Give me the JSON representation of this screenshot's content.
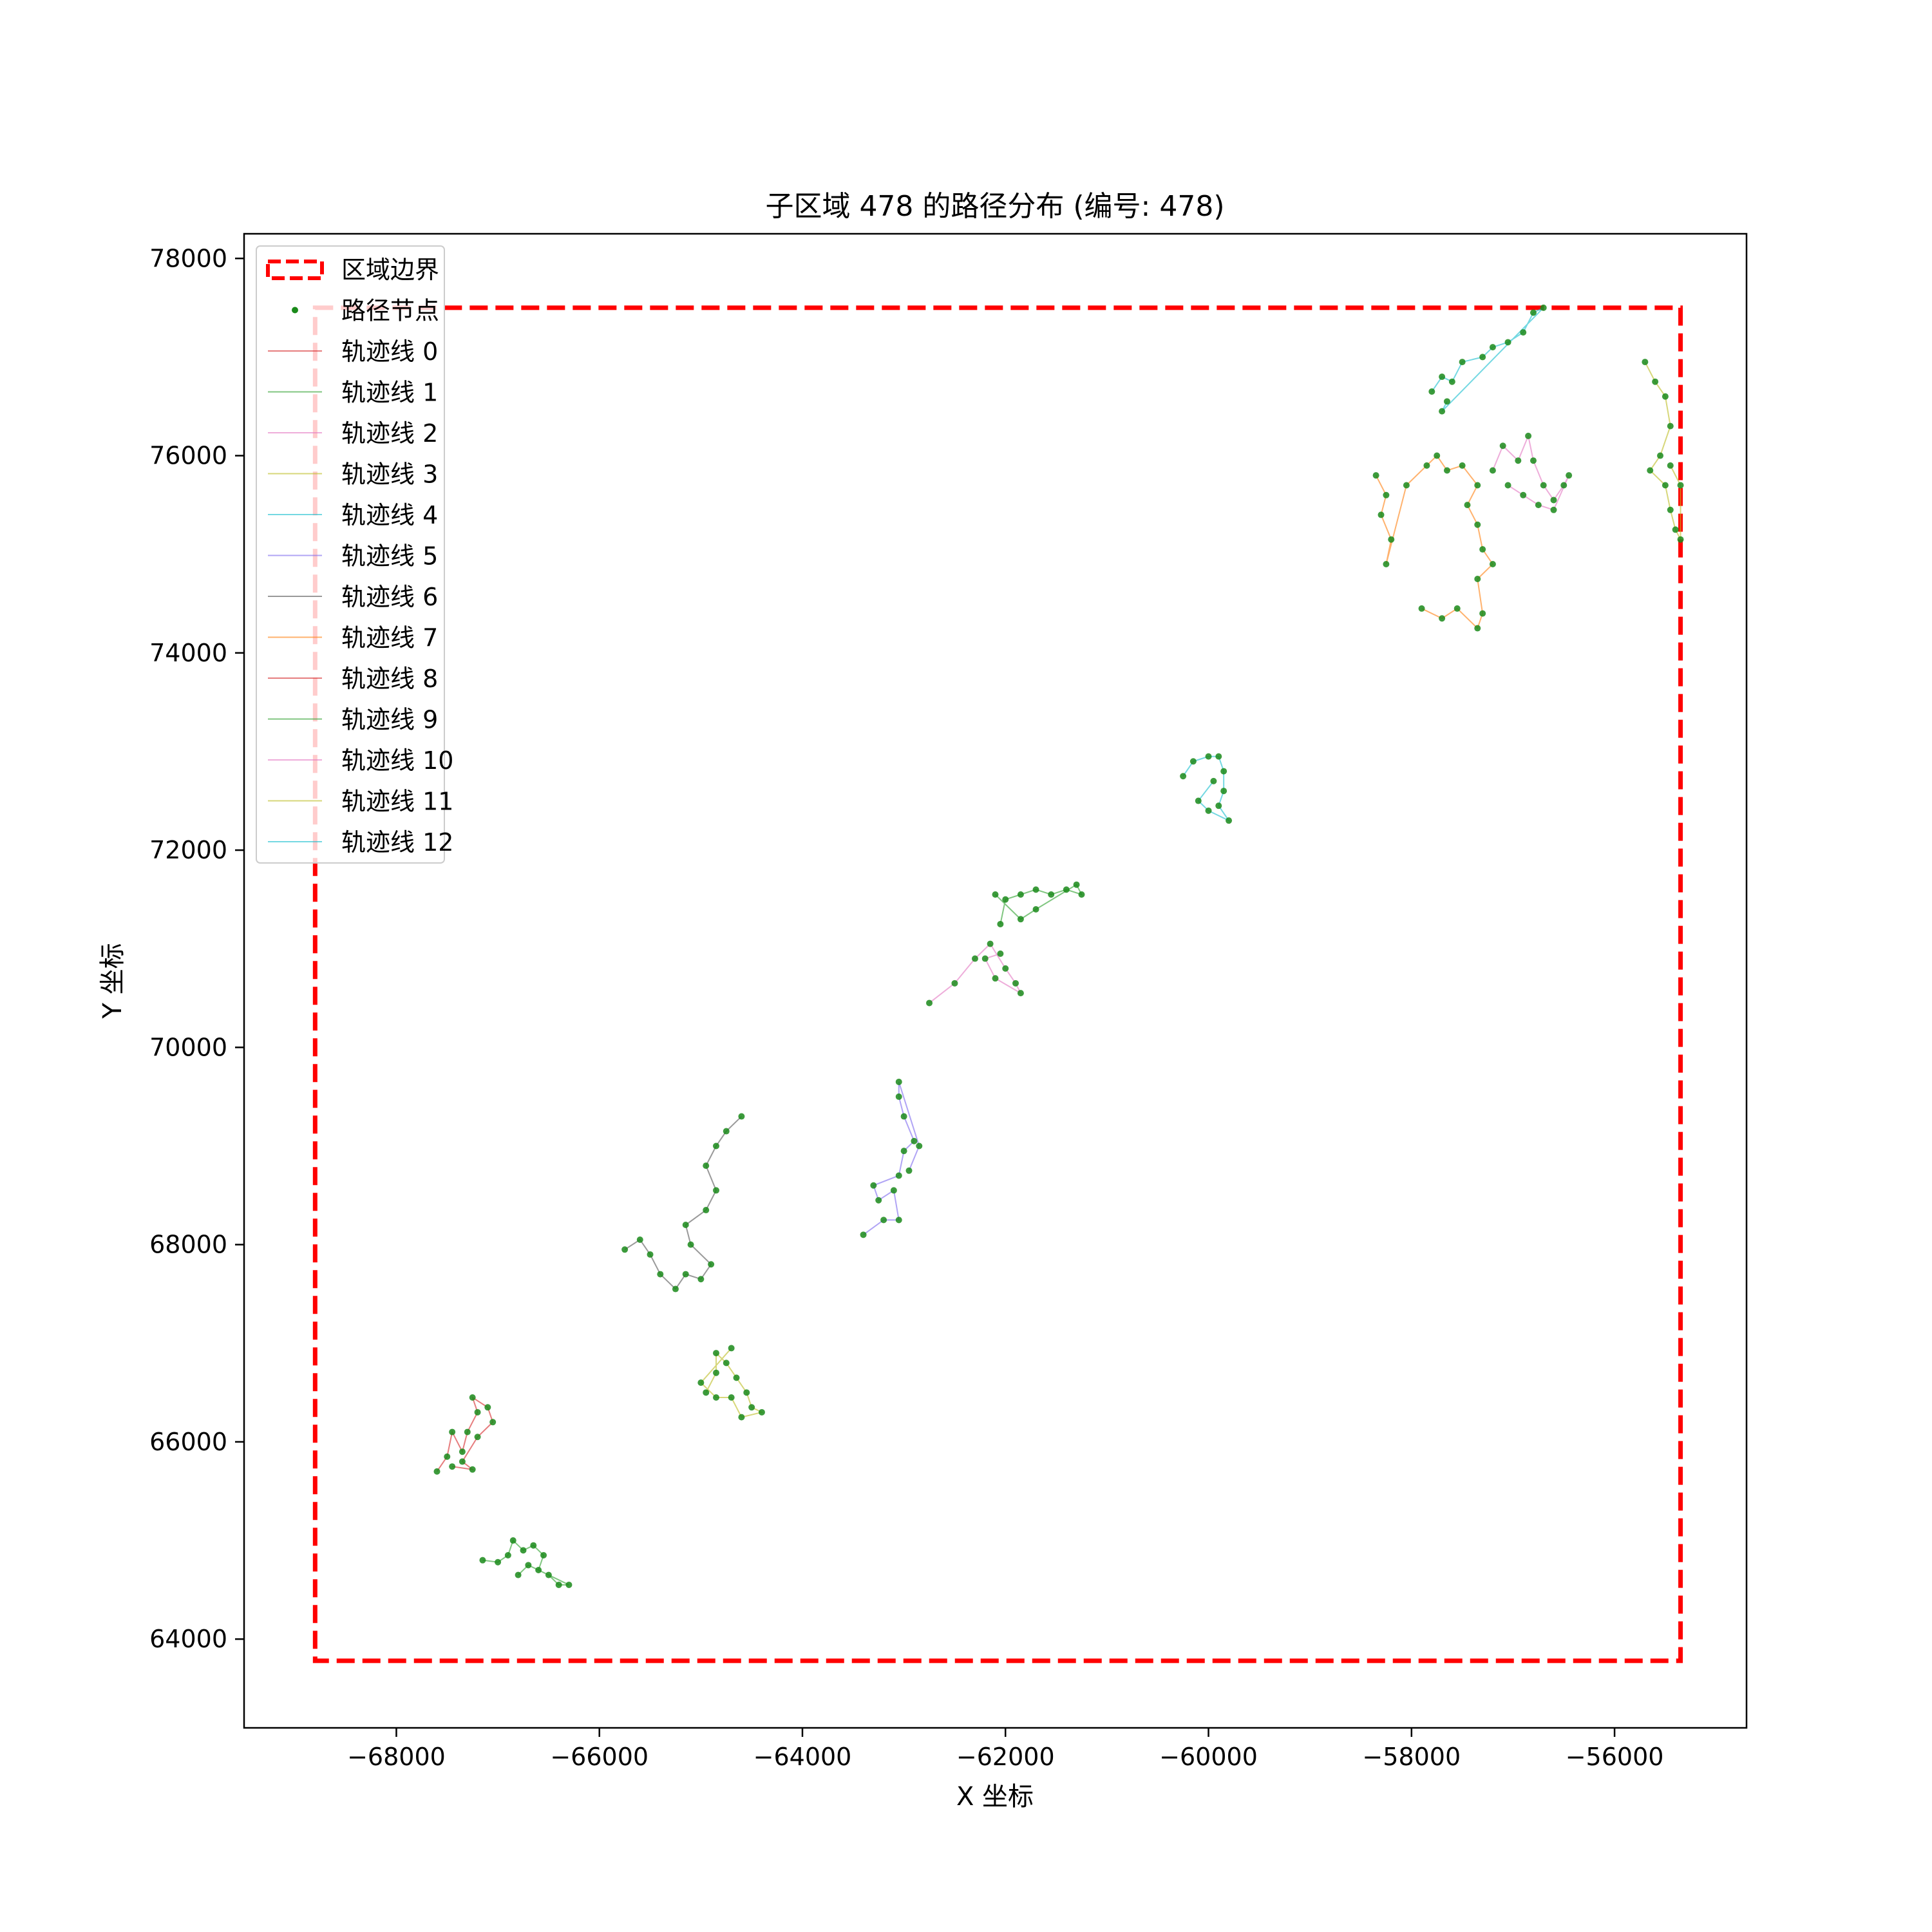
{
  "chart_data": {
    "type": "scatter",
    "title": "子区域 478 的路径分布 (编号: 478)",
    "xlabel": "X 坐标",
    "ylabel": "Y 坐标",
    "xlim": [
      -69500,
      -54700
    ],
    "ylim": [
      63100,
      78250
    ],
    "xticks": [
      -68000,
      -66000,
      -64000,
      -62000,
      -60000,
      -58000,
      -56000
    ],
    "yticks": [
      64000,
      66000,
      68000,
      70000,
      72000,
      74000,
      76000,
      78000
    ],
    "xtick_labels": [
      "−68000",
      "−66000",
      "−64000",
      "−62000",
      "−60000",
      "−58000",
      "−56000"
    ],
    "ytick_labels": [
      "64000",
      "66000",
      "68000",
      "70000",
      "72000",
      "74000",
      "76000",
      "78000"
    ],
    "grid": false,
    "legend_position": "top-left",
    "boundary": {
      "label": "区域边界",
      "color": "#ff0000",
      "x_range": [
        -68800,
        -55350
      ],
      "y_range": [
        63780,
        77500
      ]
    },
    "points_label": "路径节点",
    "point_color": "#1a8a1a",
    "series": [
      {
        "name": "轨迹线 0",
        "color": "#d62728"
      },
      {
        "name": "轨迹线 1",
        "color": "#2ca02c"
      },
      {
        "name": "轨迹线 2",
        "color": "#e377c2"
      },
      {
        "name": "轨迹线 3",
        "color": "#bcbd22"
      },
      {
        "name": "轨迹线 4",
        "color": "#17becf"
      },
      {
        "name": "轨迹线 5",
        "color": "#7b68ee"
      },
      {
        "name": "轨迹线 6",
        "color": "#555555"
      },
      {
        "name": "轨迹线 7",
        "color": "#ff7f0e"
      },
      {
        "name": "轨迹线 8",
        "color": "#d62728"
      },
      {
        "name": "轨迹线 9",
        "color": "#2ca02c"
      },
      {
        "name": "轨迹线 10",
        "color": "#e377c2"
      },
      {
        "name": "轨迹线 11",
        "color": "#bcbd22"
      },
      {
        "name": "轨迹线 12",
        "color": "#17becf"
      }
    ],
    "clusters": [
      {
        "series": 0,
        "path": [
          [
            -67600,
            65700
          ],
          [
            -67500,
            65850
          ],
          [
            -67450,
            66100
          ],
          [
            -67350,
            65900
          ],
          [
            -67300,
            66100
          ],
          [
            -67200,
            66300
          ],
          [
            -67250,
            66450
          ],
          [
            -67100,
            66350
          ],
          [
            -67050,
            66200
          ],
          [
            -67200,
            66050
          ],
          [
            -67350,
            65800
          ],
          [
            -67250,
            65720
          ],
          [
            -67450,
            65750
          ]
        ]
      },
      {
        "series": 1,
        "path": [
          [
            -67150,
            64800
          ],
          [
            -67000,
            64780
          ],
          [
            -66900,
            64850
          ],
          [
            -66850,
            65000
          ],
          [
            -66750,
            64900
          ],
          [
            -66650,
            64950
          ],
          [
            -66550,
            64850
          ],
          [
            -66600,
            64700
          ],
          [
            -66500,
            64650
          ],
          [
            -66400,
            64550
          ],
          [
            -66300,
            64550
          ],
          [
            -66700,
            64750
          ],
          [
            -66800,
            64650
          ]
        ]
      },
      {
        "series": 3,
        "path": [
          [
            -64950,
            66500
          ],
          [
            -64850,
            66700
          ],
          [
            -64850,
            66900
          ],
          [
            -64750,
            66800
          ],
          [
            -64650,
            66650
          ],
          [
            -64550,
            66500
          ],
          [
            -64500,
            66350
          ],
          [
            -64400,
            66300
          ],
          [
            -64600,
            66250
          ],
          [
            -64700,
            66450
          ],
          [
            -64850,
            66450
          ],
          [
            -65000,
            66600
          ],
          [
            -64700,
            66950
          ]
        ]
      },
      {
        "series": 6,
        "path": [
          [
            -65750,
            67950
          ],
          [
            -65600,
            68050
          ],
          [
            -65500,
            67900
          ],
          [
            -65400,
            67700
          ],
          [
            -65250,
            67550
          ],
          [
            -65150,
            67700
          ],
          [
            -65000,
            67650
          ],
          [
            -64900,
            67800
          ],
          [
            -65100,
            68000
          ],
          [
            -65150,
            68200
          ],
          [
            -64950,
            68350
          ],
          [
            -64850,
            68550
          ],
          [
            -64950,
            68800
          ],
          [
            -64850,
            69000
          ],
          [
            -64750,
            69150
          ],
          [
            -64600,
            69300
          ]
        ]
      },
      {
        "series": 5,
        "path": [
          [
            -63400,
            68100
          ],
          [
            -63200,
            68250
          ],
          [
            -63050,
            68250
          ],
          [
            -63100,
            68550
          ],
          [
            -63250,
            68450
          ],
          [
            -63300,
            68600
          ],
          [
            -63050,
            68700
          ],
          [
            -63000,
            68950
          ],
          [
            -62900,
            69050
          ],
          [
            -63000,
            69300
          ],
          [
            -63050,
            69500
          ],
          [
            -63050,
            69650
          ],
          [
            -62850,
            69000
          ],
          [
            -62950,
            68750
          ]
        ]
      },
      {
        "series": 2,
        "path": [
          [
            -62750,
            70450
          ],
          [
            -62500,
            70650
          ],
          [
            -62300,
            70900
          ],
          [
            -62150,
            71050
          ],
          [
            -62000,
            70800
          ],
          [
            -61900,
            70650
          ],
          [
            -61850,
            70550
          ],
          [
            -62100,
            70700
          ],
          [
            -62200,
            70900
          ],
          [
            -62050,
            70950
          ]
        ]
      },
      {
        "series": 9,
        "path": [
          [
            -62050,
            71250
          ],
          [
            -62000,
            71500
          ],
          [
            -61850,
            71550
          ],
          [
            -61700,
            71600
          ],
          [
            -61550,
            71550
          ],
          [
            -61400,
            71600
          ],
          [
            -61250,
            71550
          ],
          [
            -61300,
            71650
          ],
          [
            -61700,
            71400
          ],
          [
            -61850,
            71300
          ],
          [
            -62100,
            71550
          ]
        ]
      },
      {
        "series": 4,
        "path": [
          [
            -60250,
            72750
          ],
          [
            -60150,
            72900
          ],
          [
            -60000,
            72950
          ],
          [
            -59900,
            72950
          ],
          [
            -59850,
            72800
          ],
          [
            -59850,
            72600
          ],
          [
            -59900,
            72450
          ],
          [
            -59800,
            72300
          ],
          [
            -60000,
            72400
          ],
          [
            -60100,
            72500
          ],
          [
            -59950,
            72700
          ]
        ]
      },
      {
        "series": 7,
        "path": [
          [
            -58350,
            75800
          ],
          [
            -58250,
            75600
          ],
          [
            -58300,
            75400
          ],
          [
            -58200,
            75150
          ],
          [
            -58250,
            74900
          ],
          [
            -58050,
            75700
          ],
          [
            -57850,
            75900
          ],
          [
            -57750,
            76000
          ],
          [
            -57650,
            75850
          ],
          [
            -57500,
            75900
          ],
          [
            -57350,
            75700
          ],
          [
            -57450,
            75500
          ],
          [
            -57350,
            75300
          ],
          [
            -57300,
            75050
          ],
          [
            -57200,
            74900
          ],
          [
            -57350,
            74750
          ],
          [
            -57300,
            74400
          ],
          [
            -57350,
            74250
          ],
          [
            -57550,
            74450
          ],
          [
            -57700,
            74350
          ],
          [
            -57900,
            74450
          ]
        ]
      },
      {
        "series": 10,
        "path": [
          [
            -57200,
            75850
          ],
          [
            -57100,
            76100
          ],
          [
            -56950,
            75950
          ],
          [
            -56850,
            76200
          ],
          [
            -56800,
            75950
          ],
          [
            -56700,
            75700
          ],
          [
            -56600,
            75550
          ],
          [
            -56500,
            75700
          ],
          [
            -56450,
            75800
          ],
          [
            -56600,
            75450
          ],
          [
            -56750,
            75500
          ],
          [
            -56900,
            75600
          ],
          [
            -57050,
            75700
          ]
        ]
      },
      {
        "series": 12,
        "path": [
          [
            -57800,
            76650
          ],
          [
            -57700,
            76800
          ],
          [
            -57600,
            76750
          ],
          [
            -57500,
            76950
          ],
          [
            -57300,
            77000
          ],
          [
            -57200,
            77100
          ],
          [
            -57050,
            77150
          ],
          [
            -56900,
            77250
          ],
          [
            -56800,
            77450
          ],
          [
            -56700,
            77500
          ],
          [
            -57700,
            76450
          ],
          [
            -57650,
            76550
          ]
        ]
      },
      {
        "series": 11,
        "path": [
          [
            -55700,
            76950
          ],
          [
            -55600,
            76750
          ],
          [
            -55500,
            76600
          ],
          [
            -55450,
            76300
          ],
          [
            -55550,
            76000
          ],
          [
            -55650,
            75850
          ],
          [
            -55500,
            75700
          ],
          [
            -55450,
            75450
          ],
          [
            -55400,
            75250
          ],
          [
            -55350,
            75150
          ],
          [
            -55350,
            75700
          ],
          [
            -55450,
            75900
          ]
        ]
      }
    ]
  }
}
